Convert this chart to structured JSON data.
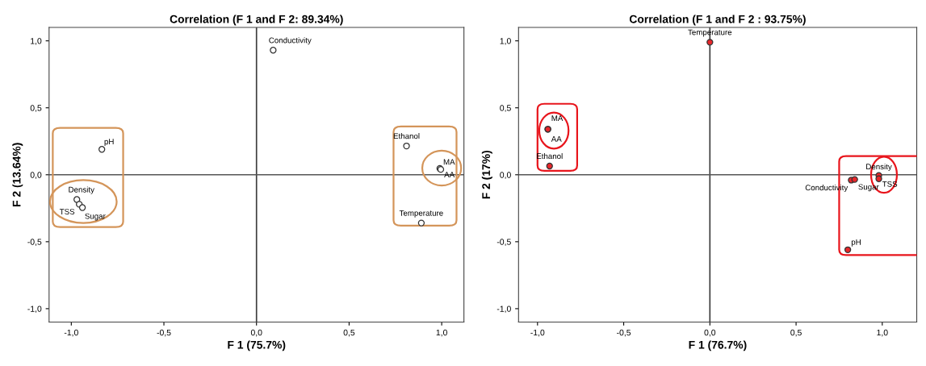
{
  "chart_data": [
    {
      "type": "scatter",
      "title": "Correlation (F 1 and F 2: 89.34%)",
      "xlabel": "F 1 (75.7%)",
      "ylabel": "F 2 (13.64%)",
      "series": [
        {
          "color": "#ffffff",
          "x": [
            0.09,
            -0.835,
            -0.97,
            -0.957,
            -0.94,
            0.81,
            0.99,
            0.995,
            0.89
          ],
          "values": [
            0.93,
            0.19,
            -0.185,
            -0.22,
            -0.245,
            0.215,
            0.047,
            0.04,
            -0.36
          ]
        }
      ],
      "annotations": [
        {
          "text": "Conductivity",
          "x": 0.09,
          "y": 0.93
        },
        {
          "text": "pH",
          "x": -0.835,
          "y": 0.19
        },
        {
          "text": "Density",
          "x": -0.97,
          "y": -0.185
        },
        {
          "text": "TSS",
          "x": -0.957,
          "y": -0.22
        },
        {
          "text": "Sugar",
          "x": -0.94,
          "y": -0.245
        },
        {
          "text": "Ethanol",
          "x": 0.81,
          "y": 0.215
        },
        {
          "text": "MA",
          "x": 0.99,
          "y": 0.047
        },
        {
          "text": "AA",
          "x": 0.995,
          "y": 0.04
        },
        {
          "text": "Temperature",
          "x": 0.89,
          "y": -0.36
        }
      ],
      "marker": "circle",
      "grid": false,
      "ref_lines": [
        {
          "axis": "x",
          "value": 0,
          "color": "#3c3c3c"
        },
        {
          "axis": "y",
          "value": 0,
          "color": "#555555"
        }
      ],
      "xlim": [
        -1.12,
        1.12
      ],
      "ylim": [
        -1.1,
        1.1
      ],
      "xticks": [
        {
          "value": -1.0,
          "label": "-1,0"
        },
        {
          "value": -0.5,
          "label": "-0,5"
        },
        {
          "value": 0.0,
          "label": "0,0"
        },
        {
          "value": 0.5,
          "label": "0,5"
        },
        {
          "value": 1.0,
          "label": "1,0"
        }
      ],
      "yticks": [
        {
          "value": -1.0,
          "label": "-1,0"
        },
        {
          "value": -0.5,
          "label": "-0,5"
        },
        {
          "value": 0.0,
          "label": "0,0"
        },
        {
          "value": 0.5,
          "label": "0,5"
        },
        {
          "value": 1.0,
          "label": "1,0"
        }
      ]
    },
    {
      "type": "scatter",
      "title": "Correlation (F 1 and F 2 : 93.75%)",
      "xlabel": "F 1 (76.7%)",
      "ylabel": "F 2 (17%)",
      "series": [
        {
          "color": "#e8262a",
          "x": [
            0.0,
            -0.94,
            -0.94,
            -0.93,
            0.82,
            0.84,
            0.98,
            0.98,
            0.8
          ],
          "values": [
            0.99,
            0.34,
            0.34,
            0.065,
            -0.04,
            -0.035,
            -0.005,
            -0.03,
            -0.56
          ]
        }
      ],
      "annotations": [
        {
          "text": "Temperature",
          "x": 0.0,
          "y": 0.99
        },
        {
          "text": "MA",
          "x": -0.94,
          "y": 0.34
        },
        {
          "text": "AA",
          "x": -0.94,
          "y": 0.34
        },
        {
          "text": "Ethanol",
          "x": -0.93,
          "y": 0.065
        },
        {
          "text": "Conductivity",
          "x": 0.82,
          "y": -0.04
        },
        {
          "text": "Sugar",
          "x": 0.84,
          "y": -0.035
        },
        {
          "text": "Density",
          "x": 0.98,
          "y": -0.005
        },
        {
          "text": "TSS",
          "x": 0.98,
          "y": -0.03
        },
        {
          "text": "pH",
          "x": 0.8,
          "y": -0.56
        }
      ],
      "marker": "circle",
      "grid": false,
      "ref_lines": [
        {
          "axis": "x",
          "value": 0,
          "color": "#3c3c3c"
        },
        {
          "axis": "y",
          "value": 0,
          "color": "#555555"
        }
      ],
      "xlim": [
        -1.11,
        1.2
      ],
      "ylim": [
        -1.1,
        1.1
      ],
      "xticks": [
        {
          "value": -1.0,
          "label": "-1,0"
        },
        {
          "value": -0.5,
          "label": "-0,5"
        },
        {
          "value": 0.0,
          "label": "0,0"
        },
        {
          "value": 0.5,
          "label": "0,5"
        },
        {
          "value": 1.0,
          "label": "1,0"
        }
      ],
      "yticks": [
        {
          "value": -1.0,
          "label": "-1,0"
        },
        {
          "value": -0.5,
          "label": "-0,5"
        },
        {
          "value": 0.0,
          "label": "0,0"
        },
        {
          "value": 0.5,
          "label": "0,5"
        },
        {
          "value": 1.0,
          "label": "1,0"
        }
      ]
    }
  ]
}
